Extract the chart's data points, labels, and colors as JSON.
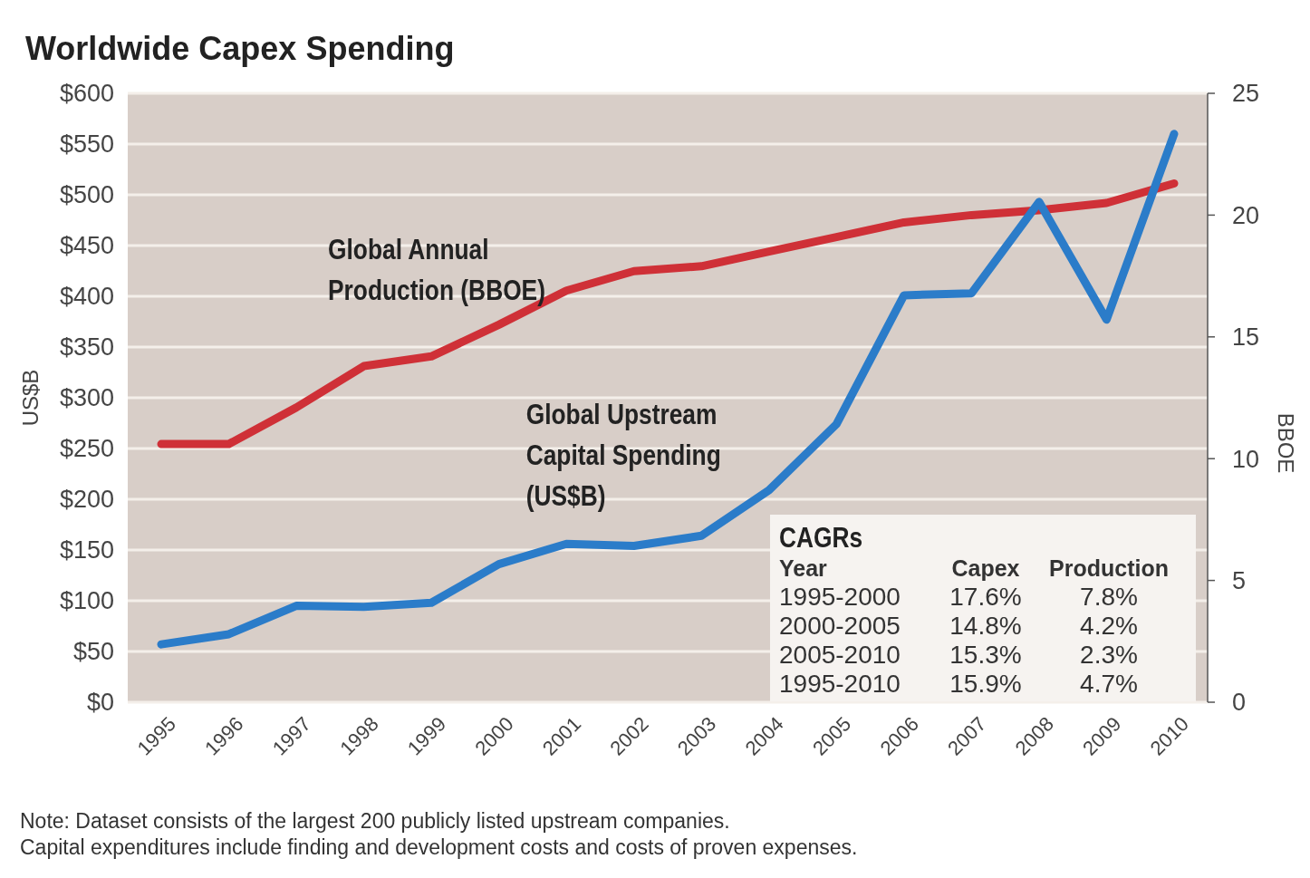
{
  "chart_data": [
    {
      "type": "line",
      "title": "Worldwide Capex Spending",
      "ylabel": "US$B",
      "y2label": "BBOE",
      "categories": [
        "1995",
        "1996",
        "1997",
        "1998",
        "1999",
        "2000",
        "2001",
        "2002",
        "2003",
        "2004",
        "2005",
        "2006",
        "2007",
        "2008",
        "2009",
        "2010"
      ],
      "series": [
        {
          "name": "Global Annual Production (BBOE)",
          "color": "#cf3037",
          "axis": "y2",
          "values": [
            10.6,
            10.6,
            12.1,
            13.8,
            14.2,
            15.5,
            16.9,
            17.7,
            17.9,
            18.5,
            19.1,
            19.7,
            20.0,
            20.2,
            20.5,
            21.3
          ]
        },
        {
          "name": "Global Upstream Capital Spending (US$B)",
          "color": "#2b7cc9",
          "values": [
            57,
            67,
            95,
            94,
            98,
            136,
            156,
            154,
            164,
            209,
            274,
            401,
            403,
            493,
            377,
            560
          ]
        }
      ],
      "ylim": [
        0,
        600
      ],
      "yticks": [
        {
          "value": 0,
          "label": "$0"
        },
        {
          "value": 50,
          "label": "$50"
        },
        {
          "value": 100,
          "label": "$100"
        },
        {
          "value": 150,
          "label": "$150"
        },
        {
          "value": 200,
          "label": "$200"
        },
        {
          "value": 250,
          "label": "$250"
        },
        {
          "value": 300,
          "label": "$300"
        },
        {
          "value": 350,
          "label": "$350"
        },
        {
          "value": 400,
          "label": "$400"
        },
        {
          "value": 450,
          "label": "$450"
        },
        {
          "value": 500,
          "label": "$500"
        },
        {
          "value": 550,
          "label": "$550"
        },
        {
          "value": 600,
          "label": "$600"
        }
      ],
      "y2lim": [
        0,
        25
      ],
      "y2ticks": [
        0,
        5,
        10,
        15,
        20,
        25
      ],
      "grid": "y",
      "marker": "none",
      "line_style": "solid",
      "annotations": [
        "Note: Dataset consists of the largest 200 publicly listed upstream companies.",
        "Capital expenditures include finding and development costs and costs of proven expenses."
      ]
    },
    {
      "type": "other",
      "title": "CAGRs",
      "annotations": [
        "Year",
        "Capex",
        "Production",
        "1995-2000",
        "17.6%",
        "7.8%",
        "2000-2005",
        "14.8%",
        "4.2%",
        "2005-2010",
        "15.3%",
        "2.3%",
        "1995-2010",
        "15.9%",
        "4.7%"
      ]
    }
  ]
}
